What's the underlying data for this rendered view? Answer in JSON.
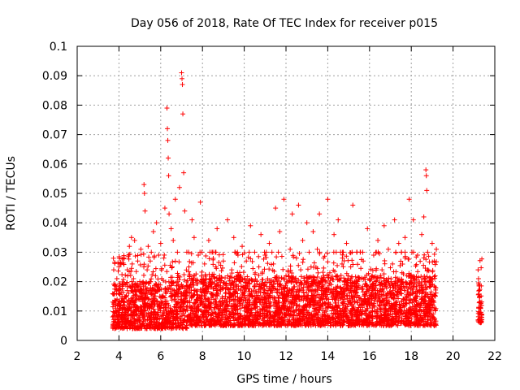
{
  "chart_data": {
    "type": "scatter",
    "title": "Day 056 of 2018, Rate Of TEC Index for receiver p015",
    "xlabel": "GPS time / hours",
    "ylabel": "ROTI / TECUs",
    "xlim": [
      2,
      22
    ],
    "ylim": [
      0,
      0.1
    ],
    "xticks": [
      "2",
      "4",
      "6",
      "8",
      "10",
      "12",
      "14",
      "16",
      "18",
      "20",
      "22"
    ],
    "yticks": [
      "0",
      "0.01",
      "0.02",
      "0.03",
      "0.04",
      "0.05",
      "0.06",
      "0.07",
      "0.08",
      "0.09",
      "0.1"
    ],
    "grid": true,
    "marker": "+",
    "marker_color": "#ff0000",
    "series": [
      {
        "name": "ROTI",
        "points": [
          [
            3.7,
            0.008
          ],
          [
            3.75,
            0.024
          ],
          [
            3.8,
            0.004
          ],
          [
            3.85,
            0.012
          ],
          [
            3.9,
            0.021
          ],
          [
            3.95,
            0.009
          ],
          [
            4.0,
            0.017
          ],
          [
            4.05,
            0.006
          ],
          [
            4.1,
            0.026
          ],
          [
            4.15,
            0.011
          ],
          [
            4.2,
            0.019
          ],
          [
            4.25,
            0.028
          ],
          [
            4.3,
            0.007
          ],
          [
            4.35,
            0.015
          ],
          [
            4.4,
            0.024
          ],
          [
            4.45,
            0.01
          ],
          [
            4.5,
            0.032
          ],
          [
            4.55,
            0.013
          ],
          [
            4.6,
            0.035
          ],
          [
            4.65,
            0.009
          ],
          [
            4.7,
            0.021
          ],
          [
            4.75,
            0.034
          ],
          [
            4.8,
            0.012
          ],
          [
            4.85,
            0.018
          ],
          [
            4.9,
            0.027
          ],
          [
            4.95,
            0.008
          ],
          [
            5.0,
            0.02
          ],
          [
            5.05,
            0.031
          ],
          [
            5.1,
            0.014
          ],
          [
            5.15,
            0.009
          ],
          [
            5.2,
            0.053
          ],
          [
            5.22,
            0.05
          ],
          [
            5.25,
            0.044
          ],
          [
            5.3,
            0.016
          ],
          [
            5.35,
            0.024
          ],
          [
            5.4,
            0.032
          ],
          [
            5.45,
            0.011
          ],
          [
            5.5,
            0.027
          ],
          [
            5.55,
            0.03
          ],
          [
            5.6,
            0.013
          ],
          [
            5.65,
            0.037
          ],
          [
            5.7,
            0.008
          ],
          [
            5.75,
            0.022
          ],
          [
            5.8,
            0.04
          ],
          [
            5.85,
            0.017
          ],
          [
            5.9,
            0.029
          ],
          [
            5.95,
            0.012
          ],
          [
            6.0,
            0.033
          ],
          [
            6.05,
            0.021
          ],
          [
            6.1,
            0.006
          ],
          [
            6.15,
            0.028
          ],
          [
            6.2,
            0.045
          ],
          [
            6.25,
            0.016
          ],
          [
            6.3,
            0.079
          ],
          [
            6.32,
            0.072
          ],
          [
            6.34,
            0.068
          ],
          [
            6.36,
            0.062
          ],
          [
            6.38,
            0.056
          ],
          [
            6.4,
            0.043
          ],
          [
            6.45,
            0.011
          ],
          [
            6.5,
            0.038
          ],
          [
            6.55,
            0.025
          ],
          [
            6.6,
            0.034
          ],
          [
            6.65,
            0.017
          ],
          [
            6.7,
            0.048
          ],
          [
            6.75,
            0.009
          ],
          [
            6.8,
            0.03
          ],
          [
            6.85,
            0.022
          ],
          [
            6.9,
            0.052
          ],
          [
            6.95,
            0.014
          ],
          [
            7.0,
            0.091
          ],
          [
            7.02,
            0.089
          ],
          [
            7.04,
            0.087
          ],
          [
            7.06,
            0.077
          ],
          [
            7.1,
            0.057
          ],
          [
            7.15,
            0.044
          ],
          [
            7.2,
            0.01
          ],
          [
            7.25,
            0.03
          ],
          [
            7.3,
            0.018
          ],
          [
            7.35,
            0.025
          ],
          [
            7.4,
            0.008
          ],
          [
            7.5,
            0.041
          ],
          [
            7.6,
            0.035
          ],
          [
            7.7,
            0.014
          ],
          [
            7.8,
            0.029
          ],
          [
            7.9,
            0.047
          ],
          [
            7.95,
            0.02
          ],
          [
            8.0,
            0.012
          ],
          [
            8.1,
            0.026
          ],
          [
            8.2,
            0.008
          ],
          [
            8.3,
            0.034
          ],
          [
            8.4,
            0.016
          ],
          [
            8.5,
            0.03
          ],
          [
            8.6,
            0.011
          ],
          [
            8.7,
            0.038
          ],
          [
            8.8,
            0.021
          ],
          [
            8.9,
            0.007
          ],
          [
            9.0,
            0.027
          ],
          [
            9.1,
            0.015
          ],
          [
            9.2,
            0.041
          ],
          [
            9.3,
            0.009
          ],
          [
            9.4,
            0.024
          ],
          [
            9.5,
            0.035
          ],
          [
            9.6,
            0.012
          ],
          [
            9.7,
            0.029
          ],
          [
            9.8,
            0.006
          ],
          [
            9.9,
            0.032
          ],
          [
            10.0,
            0.018
          ],
          [
            10.1,
            0.027
          ],
          [
            10.2,
            0.01
          ],
          [
            10.3,
            0.039
          ],
          [
            10.4,
            0.015
          ],
          [
            10.5,
            0.03
          ],
          [
            10.6,
            0.007
          ],
          [
            10.7,
            0.025
          ],
          [
            10.8,
            0.036
          ],
          [
            10.9,
            0.013
          ],
          [
            11.0,
            0.029
          ],
          [
            11.1,
            0.008
          ],
          [
            11.2,
            0.033
          ],
          [
            11.3,
            0.019
          ],
          [
            11.4,
            0.026
          ],
          [
            11.5,
            0.045
          ],
          [
            11.6,
            0.011
          ],
          [
            11.7,
            0.037
          ],
          [
            11.8,
            0.016
          ],
          [
            11.9,
            0.048
          ],
          [
            12.0,
            0.022
          ],
          [
            12.1,
            0.01
          ],
          [
            12.2,
            0.031
          ],
          [
            12.3,
            0.043
          ],
          [
            12.4,
            0.014
          ],
          [
            12.5,
            0.028
          ],
          [
            12.6,
            0.046
          ],
          [
            12.7,
            0.009
          ],
          [
            12.8,
            0.034
          ],
          [
            12.9,
            0.019
          ],
          [
            13.0,
            0.04
          ],
          [
            13.1,
            0.012
          ],
          [
            13.2,
            0.025
          ],
          [
            13.3,
            0.037
          ],
          [
            13.4,
            0.007
          ],
          [
            13.5,
            0.031
          ],
          [
            13.6,
            0.043
          ],
          [
            13.7,
            0.017
          ],
          [
            13.8,
            0.028
          ],
          [
            13.9,
            0.011
          ],
          [
            14.0,
            0.048
          ],
          [
            14.1,
            0.023
          ],
          [
            14.2,
            0.008
          ],
          [
            14.3,
            0.036
          ],
          [
            14.4,
            0.015
          ],
          [
            14.5,
            0.041
          ],
          [
            14.6,
            0.01
          ],
          [
            14.7,
            0.028
          ],
          [
            14.8,
            0.019
          ],
          [
            14.9,
            0.033
          ],
          [
            15.0,
            0.006
          ],
          [
            15.1,
            0.025
          ],
          [
            15.2,
            0.046
          ],
          [
            15.3,
            0.013
          ],
          [
            15.4,
            0.03
          ],
          [
            15.5,
            0.018
          ],
          [
            15.6,
            0.009
          ],
          [
            15.7,
            0.027
          ],
          [
            15.8,
            0.014
          ],
          [
            15.9,
            0.038
          ],
          [
            16.0,
            0.021
          ],
          [
            16.1,
            0.008
          ],
          [
            16.2,
            0.029
          ],
          [
            16.3,
            0.016
          ],
          [
            16.4,
            0.034
          ],
          [
            16.5,
            0.011
          ],
          [
            16.6,
            0.024
          ],
          [
            16.7,
            0.039
          ],
          [
            16.8,
            0.007
          ],
          [
            16.9,
            0.031
          ],
          [
            17.0,
            0.018
          ],
          [
            17.1,
            0.026
          ],
          [
            17.2,
            0.041
          ],
          [
            17.3,
            0.012
          ],
          [
            17.4,
            0.033
          ],
          [
            17.5,
            0.02
          ],
          [
            17.6,
            0.009
          ],
          [
            17.7,
            0.035
          ],
          [
            17.8,
            0.015
          ],
          [
            17.9,
            0.048
          ],
          [
            18.0,
            0.022
          ],
          [
            18.1,
            0.041
          ],
          [
            18.2,
            0.011
          ],
          [
            18.3,
            0.029
          ],
          [
            18.4,
            0.017
          ],
          [
            18.5,
            0.036
          ],
          [
            18.6,
            0.042
          ],
          [
            18.7,
            0.058
          ],
          [
            18.72,
            0.056
          ],
          [
            18.74,
            0.051
          ],
          [
            18.8,
            0.024
          ],
          [
            18.9,
            0.013
          ],
          [
            19.0,
            0.033
          ],
          [
            19.05,
            0.009
          ],
          [
            19.1,
            0.027
          ],
          [
            19.15,
            0.018
          ],
          [
            19.2,
            0.031
          ],
          [
            21.2,
            0.024
          ],
          [
            21.22,
            0.021
          ],
          [
            21.24,
            0.019
          ],
          [
            21.26,
            0.017
          ],
          [
            21.28,
            0.015
          ],
          [
            21.3,
            0.013
          ],
          [
            21.32,
            0.011
          ],
          [
            21.34,
            0.009
          ],
          [
            21.36,
            0.007
          ]
        ]
      }
    ],
    "dense_bands": [
      {
        "x_range": [
          3.7,
          7.3
        ],
        "y_range": [
          0.004,
          0.02
        ]
      },
      {
        "x_range": [
          7.3,
          19.2
        ],
        "y_range": [
          0.005,
          0.022
        ]
      },
      {
        "x_range": [
          21.2,
          21.4
        ],
        "y_range": [
          0.006,
          0.02
        ]
      }
    ]
  }
}
